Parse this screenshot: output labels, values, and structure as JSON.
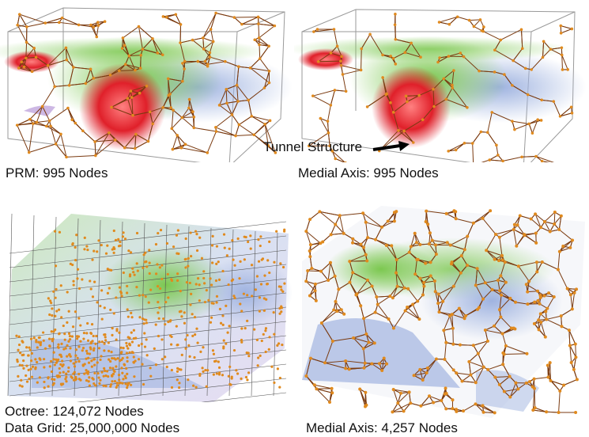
{
  "panels": [
    {
      "id": "prm",
      "caption_lines": [
        "PRM: 995 Nodes"
      ]
    },
    {
      "id": "medial-995",
      "caption_lines": [
        "Medial Axis: 995 Nodes"
      ]
    },
    {
      "id": "octree",
      "caption_lines": [
        "Octree: 124,072 Nodes",
        "Data Grid: 25,000,000 Nodes"
      ]
    },
    {
      "id": "medial-4257",
      "caption_lines": [
        "Medial Axis: 4,257 Nodes"
      ]
    }
  ],
  "annotation": {
    "label": "Tunnel Structure"
  },
  "colors": {
    "node": "#e08a1e",
    "edge": "#7a3a10",
    "volume_red": "#e0202a",
    "volume_green": "#6cb84a",
    "volume_blue": "#8aa3d8",
    "volume_purple": "#b89ad8",
    "box_line": "#9a9a9a"
  }
}
